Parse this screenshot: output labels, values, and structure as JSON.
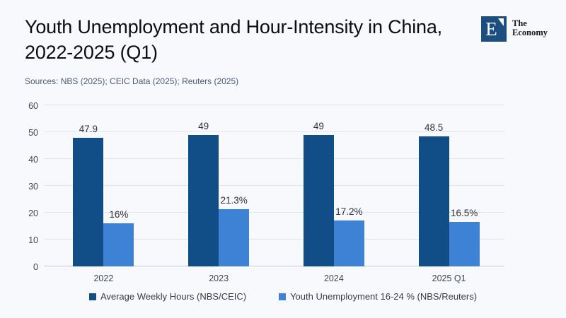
{
  "header": {
    "title": "Youth Unemployment and Hour-Intensity in China, 2022-2025 (Q1)",
    "sources": "Sources: NBS (2025); CEIC Data (2025); Reuters (2025)"
  },
  "logo": {
    "letter": "E",
    "brand_line1": "The",
    "brand_line2": "Economy",
    "square_color": "#1d4e80"
  },
  "chart_data": {
    "type": "bar",
    "title": "Youth Unemployment and Hour-Intensity in China, 2022-2025 (Q1)",
    "categories": [
      "2022",
      "2023",
      "2024",
      "2025 Q1"
    ],
    "series": [
      {
        "name": "Average Weekly Hours (NBS/CEIC)",
        "color": "#114e87",
        "values": [
          47.9,
          49,
          49,
          48.5
        ],
        "labels": [
          "47.9",
          "49",
          "49",
          "48.5"
        ]
      },
      {
        "name": "Youth Unemployment 16-24 % (NBS/Reuters)",
        "color": "#3e82d6",
        "values": [
          16,
          21.3,
          17.2,
          16.5
        ],
        "labels": [
          "16%",
          "21.3%",
          "17.2%",
          "16.5%"
        ]
      }
    ],
    "xlabel": "",
    "ylabel": "",
    "ylim": [
      0,
      60
    ],
    "yticks": [
      0,
      10,
      20,
      30,
      40,
      50,
      60
    ],
    "grid": true,
    "legend_position": "bottom"
  }
}
